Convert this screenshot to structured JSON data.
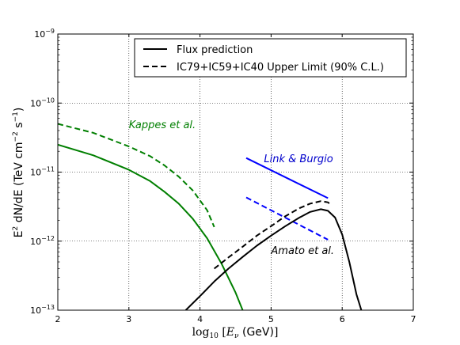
{
  "chart_data": {
    "type": "line",
    "xlabel_math": "log",
    "xlabel_sub": "10",
    "xlabel_var": "E",
    "xlabel_var_sub": "ν",
    "xlabel_unit": "(GeV)",
    "ylabel_pre": "E",
    "ylabel_exp1": "2",
    "ylabel_mid": " dN/dE (TeV cm",
    "ylabel_exp2": "−2",
    "ylabel_mid2": " s",
    "ylabel_exp3": "−1",
    "ylabel_post": ")",
    "xlim": [
      2,
      7
    ],
    "ylim": [
      1e-13,
      1e-09
    ],
    "y_scale": "log",
    "grid": true,
    "legend_position": "top-right",
    "x_ticks": [
      {
        "value": 2,
        "label": "2"
      },
      {
        "value": 3,
        "label": "3"
      },
      {
        "value": 4,
        "label": "4"
      },
      {
        "value": 5,
        "label": "5"
      },
      {
        "value": 6,
        "label": "6"
      },
      {
        "value": 7,
        "label": "7"
      }
    ],
    "y_ticks": [
      {
        "value": -13,
        "mant": "10",
        "exp": "−13"
      },
      {
        "value": -12,
        "mant": "10",
        "exp": "−12"
      },
      {
        "value": -11,
        "mant": "10",
        "exp": "−11"
      },
      {
        "value": -10,
        "mant": "10",
        "exp": "−10"
      },
      {
        "value": -9,
        "mant": "10",
        "exp": "−9"
      }
    ],
    "legend": [
      {
        "label": "Flux prediction",
        "style": "solid"
      },
      {
        "label": "IC79+IC59+IC40 Upper Limit (90% C.L.)",
        "style": "dashed"
      }
    ],
    "annotations": [
      {
        "text": "Kappes et al.",
        "color": "#007f00",
        "x": 3.0,
        "y": 4.3e-11
      },
      {
        "text": "Link & Burgio",
        "color": "#0000cc",
        "x": 4.9,
        "y": 1.4e-11
      },
      {
        "text": "Amato et al.",
        "color": "#000000",
        "x": 5.0,
        "y": 6.5e-13
      }
    ],
    "series": [
      {
        "color": "#007f00",
        "style": "solid",
        "x": [
          2.0,
          2.5,
          3.0,
          3.3,
          3.5,
          3.7,
          3.9,
          4.1,
          4.3,
          4.5,
          4.6
        ],
        "y": [
          2.5e-11,
          1.75e-11,
          1.08e-11,
          7.4e-12,
          5.2e-12,
          3.5e-12,
          2.1e-12,
          1.1e-12,
          4.8e-13,
          1.8e-13,
          1e-13
        ]
      },
      {
        "color": "#007f00",
        "style": "dashed",
        "x": [
          2.0,
          2.5,
          3.0,
          3.3,
          3.5,
          3.7,
          3.9,
          4.1,
          4.2
        ],
        "y": [
          5e-11,
          3.7e-11,
          2.35e-11,
          1.7e-11,
          1.25e-11,
          8.6e-12,
          5.4e-12,
          2.8e-12,
          1.6e-12
        ]
      },
      {
        "color": "#0000ff",
        "style": "solid",
        "x": [
          4.65,
          5.8
        ],
        "y": [
          1.6e-11,
          4.2e-12
        ]
      },
      {
        "color": "#0000ff",
        "style": "dashed",
        "x": [
          4.65,
          5.8
        ],
        "y": [
          4.3e-12,
          1.05e-12
        ]
      },
      {
        "color": "#000000",
        "style": "solid",
        "x": [
          3.8,
          4.0,
          4.2,
          4.4,
          4.6,
          4.8,
          5.0,
          5.2,
          5.4,
          5.55,
          5.7,
          5.8,
          5.9,
          6.0,
          6.1,
          6.2,
          6.27
        ],
        "y": [
          1e-13,
          1.6e-13,
          2.6e-13,
          4e-13,
          5.9e-13,
          8.6e-13,
          1.2e-12,
          1.65e-12,
          2.2e-12,
          2.65e-12,
          2.9e-12,
          2.75e-12,
          2.2e-12,
          1.25e-12,
          5e-13,
          1.7e-13,
          1e-13
        ]
      },
      {
        "color": "#000000",
        "style": "dashed",
        "x": [
          4.2,
          4.4,
          4.6,
          4.8,
          5.0,
          5.2,
          5.4,
          5.55,
          5.7,
          5.8,
          5.85
        ],
        "y": [
          4e-13,
          5.8e-13,
          8.3e-13,
          1.2e-12,
          1.65e-12,
          2.3e-12,
          3e-12,
          3.5e-12,
          3.8e-12,
          3.65e-12,
          3.3e-12
        ]
      }
    ]
  }
}
